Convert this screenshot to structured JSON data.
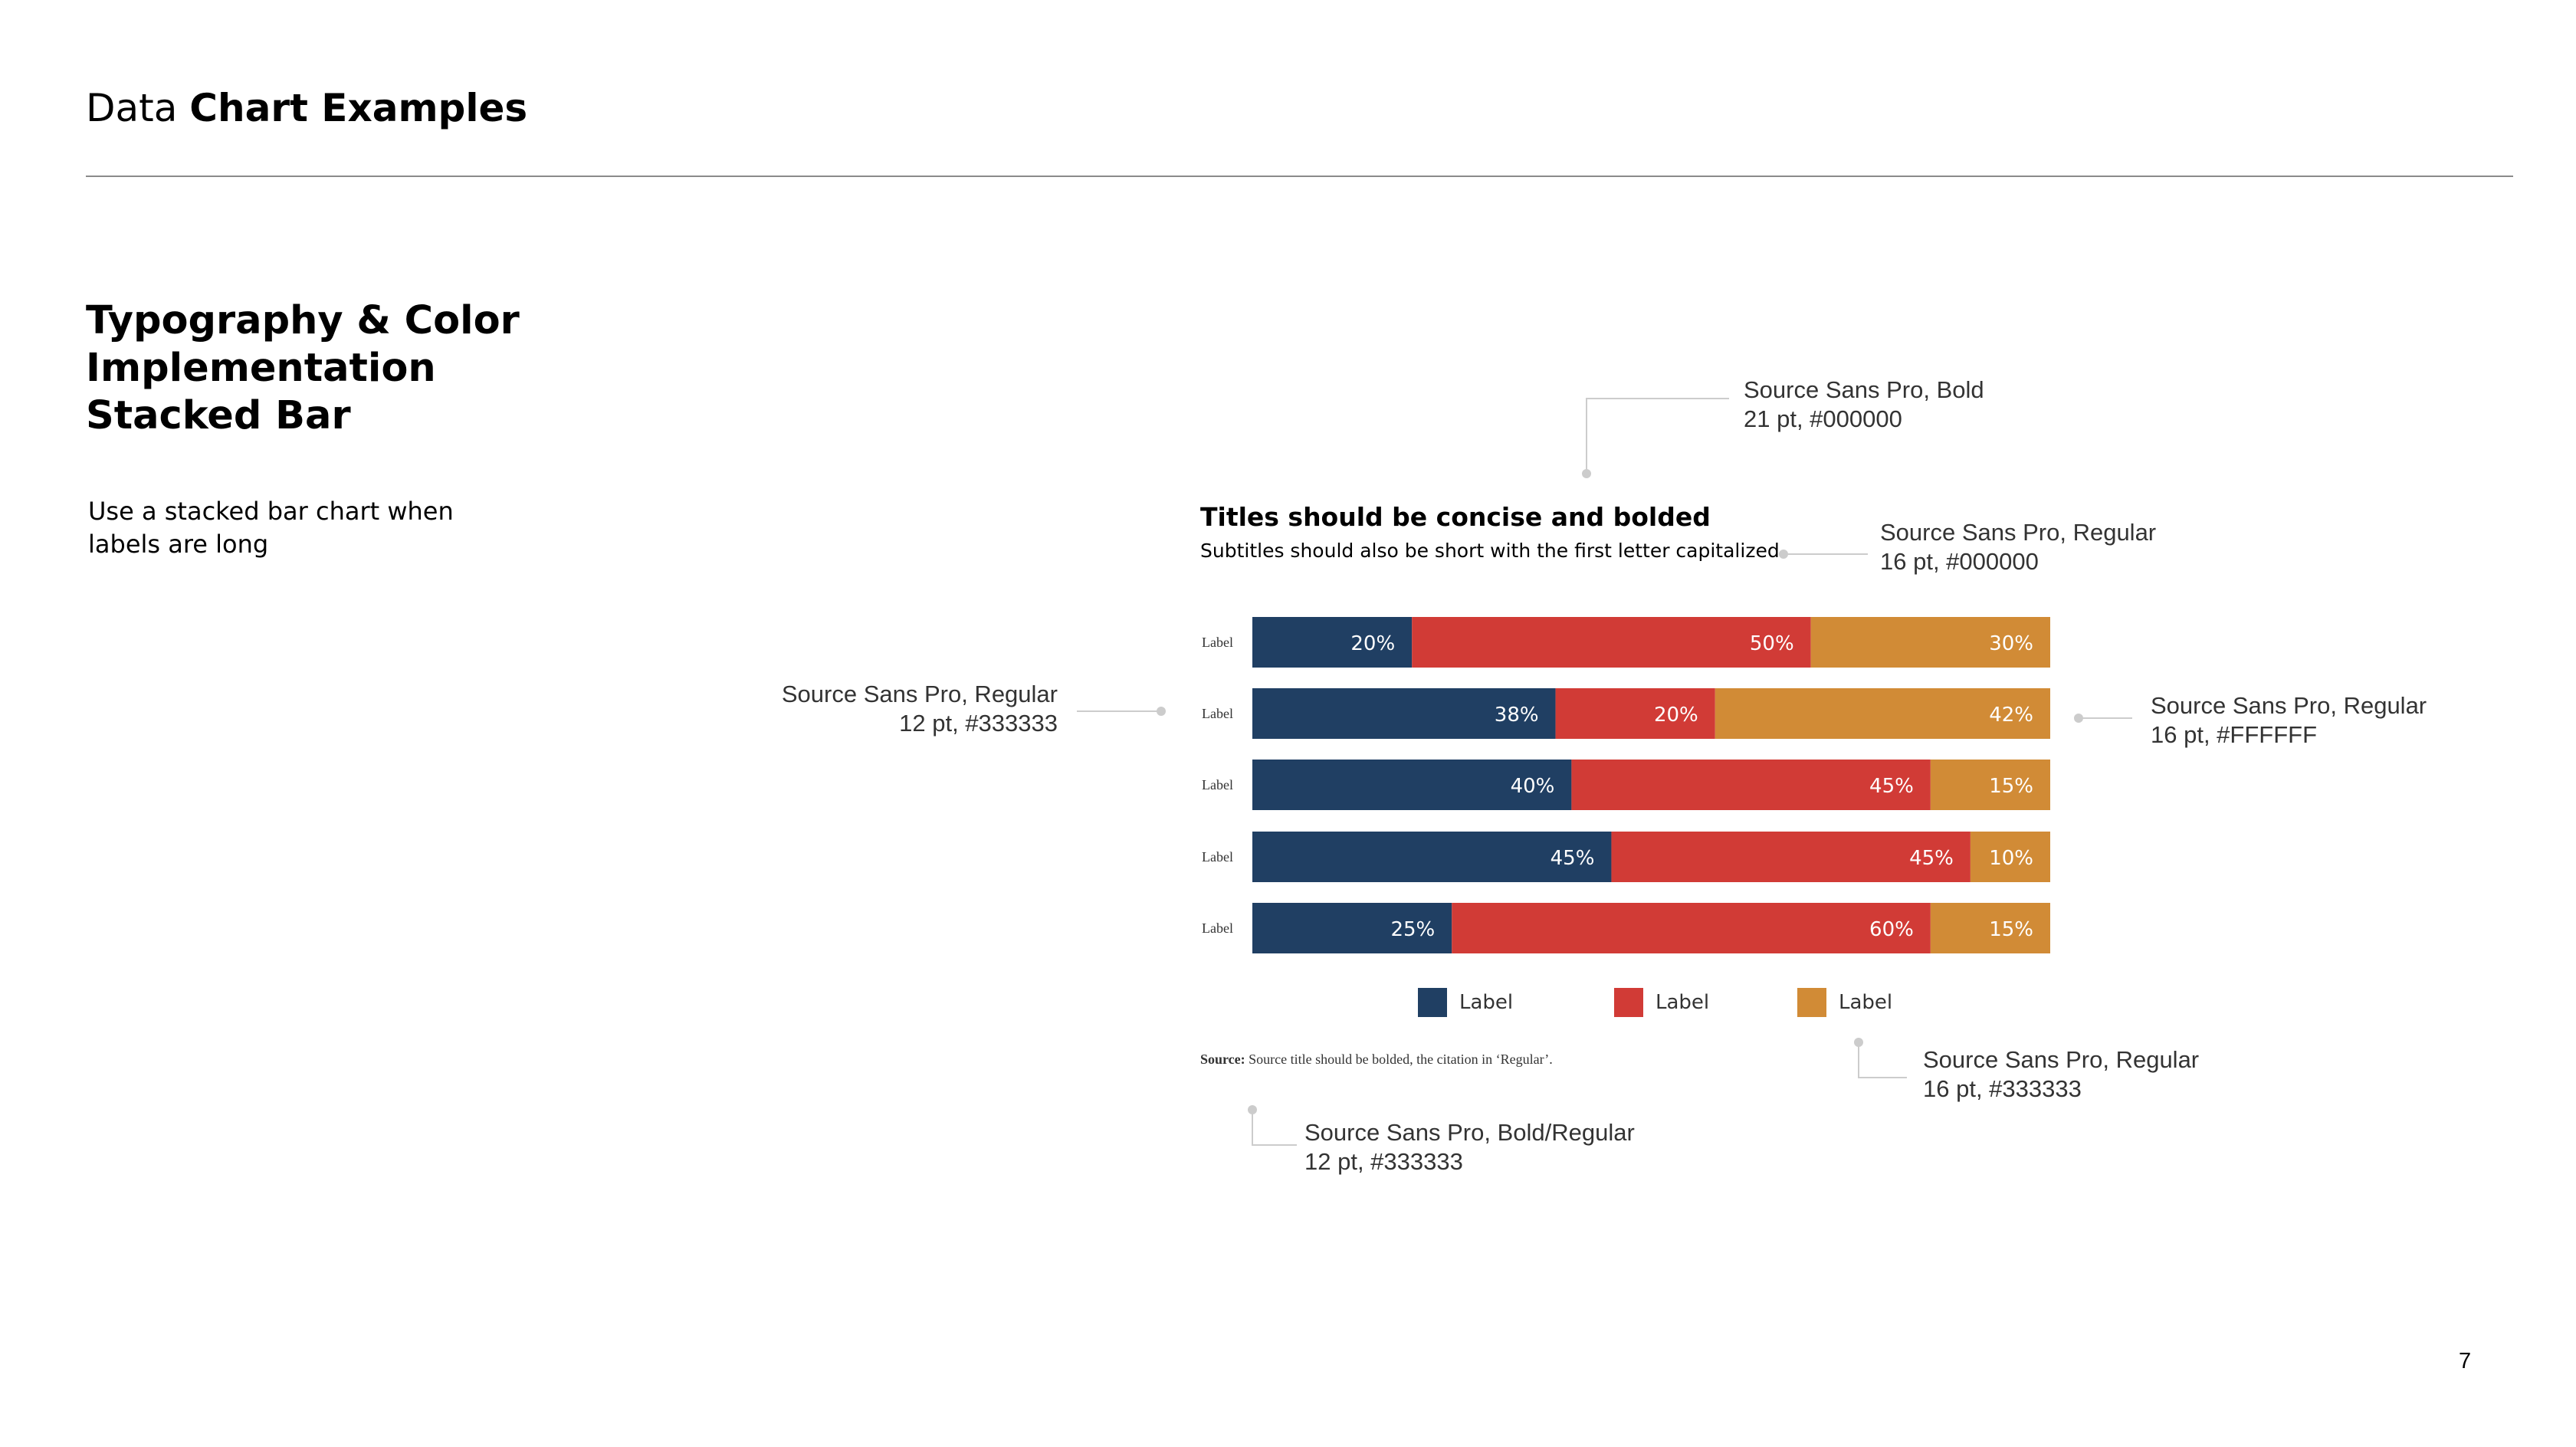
{
  "header": {
    "prefix": "Data",
    "bold": "Chart Examples"
  },
  "section": {
    "title_lines": [
      "Typography & Color",
      "Implementation",
      "Stacked Bar"
    ],
    "description": "Use a stacked bar chart when labels are long"
  },
  "colors": {
    "navy": "#203f63",
    "red": "#d13b36",
    "orange": "#d18b36",
    "annotation_line": "#cccccc",
    "annotation_text": "#333333"
  },
  "chart_data": {
    "type": "bar",
    "stacked": true,
    "orientation": "horizontal",
    "title": "Titles should be concise and bolded",
    "subtitle": "Subtitles should also be short with the first letter capitalized",
    "categories": [
      "Label",
      "Label",
      "Label",
      "Label",
      "Label"
    ],
    "series": [
      {
        "name": "Label",
        "color": "#203f63",
        "values": [
          20,
          38,
          40,
          45,
          25
        ]
      },
      {
        "name": "Label",
        "color": "#d13b36",
        "values": [
          50,
          20,
          45,
          45,
          60
        ]
      },
      {
        "name": "Label",
        "color": "#d18b36",
        "values": [
          30,
          42,
          15,
          10,
          15
        ]
      }
    ],
    "value_labels": [
      [
        "20%",
        "50%",
        "30%"
      ],
      [
        "38%",
        "20%",
        "42%"
      ],
      [
        "40%",
        "45%",
        "15%"
      ],
      [
        "45%",
        "45%",
        "10%"
      ],
      [
        "25%",
        "60%",
        "15%"
      ]
    ],
    "xlim": [
      0,
      100
    ],
    "legend_position": "bottom",
    "source_bold": "Source:",
    "source_text": "Source title should be bolded, the citation in ‘Regular’."
  },
  "annotations": {
    "title": [
      "Source Sans Pro, Bold",
      "21 pt, #000000"
    ],
    "subtitle": [
      "Source Sans Pro, Regular",
      "16 pt, #000000"
    ],
    "category_labels": [
      "Source Sans Pro, Regular",
      "12 pt, #333333"
    ],
    "value_labels": [
      "Source Sans Pro, Regular",
      "16 pt, #FFFFFF"
    ],
    "legend": [
      "Source Sans Pro, Regular",
      "16 pt, #333333"
    ],
    "source": [
      "Source Sans Pro, Bold/Regular",
      "12 pt, #333333"
    ]
  },
  "page_number": "7"
}
